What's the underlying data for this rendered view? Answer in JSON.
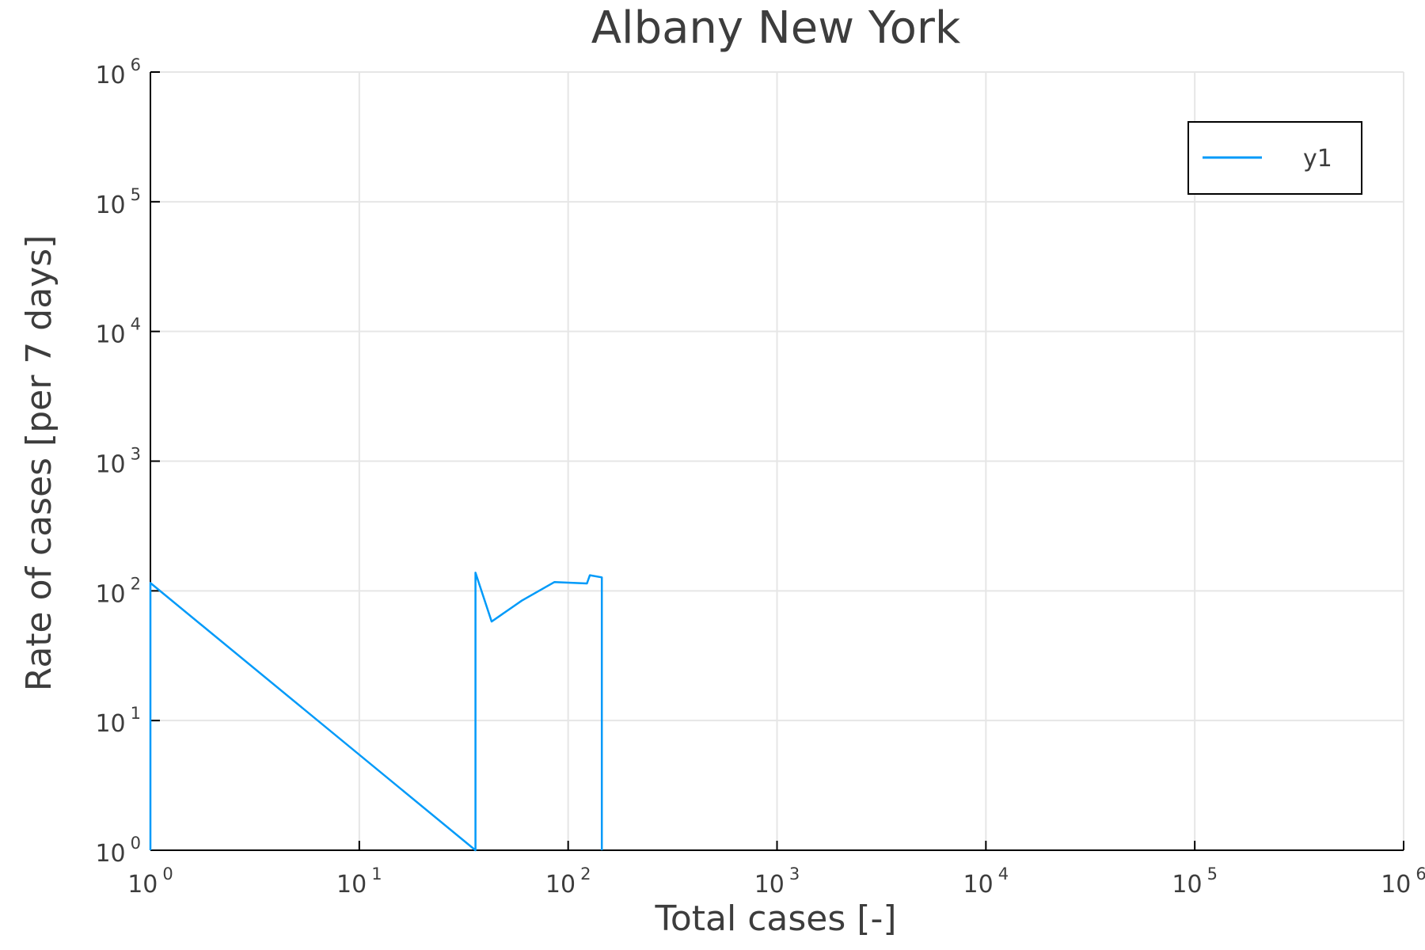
{
  "chart_data": {
    "type": "line",
    "title": "Albany New York",
    "xlabel": "Total cases [-]",
    "ylabel": "Rate of cases [per 7 days]",
    "xscale": "log",
    "yscale": "log",
    "xlim": [
      1,
      1000000
    ],
    "ylim": [
      1,
      1000000
    ],
    "grid": true,
    "legend": "top-right",
    "x_ticks": [
      {
        "base": "10",
        "exp": "0"
      },
      {
        "base": "10",
        "exp": "1"
      },
      {
        "base": "10",
        "exp": "2"
      },
      {
        "base": "10",
        "exp": "3"
      },
      {
        "base": "10",
        "exp": "4"
      },
      {
        "base": "10",
        "exp": "5"
      },
      {
        "base": "10",
        "exp": "6"
      }
    ],
    "y_ticks": [
      {
        "base": "10",
        "exp": "0"
      },
      {
        "base": "10",
        "exp": "1"
      },
      {
        "base": "10",
        "exp": "2"
      },
      {
        "base": "10",
        "exp": "3"
      },
      {
        "base": "10",
        "exp": "4"
      },
      {
        "base": "10",
        "exp": "5"
      },
      {
        "base": "10",
        "exp": "6"
      }
    ],
    "series": [
      {
        "name": "y1",
        "color": "#009af9",
        "x": [
          1,
          1,
          36,
          36,
          43,
          60,
          86,
          123,
          127,
          145,
          145
        ],
        "y": [
          1,
          115,
          1,
          138,
          58,
          84,
          117,
          114,
          132,
          127,
          1
        ]
      }
    ]
  }
}
